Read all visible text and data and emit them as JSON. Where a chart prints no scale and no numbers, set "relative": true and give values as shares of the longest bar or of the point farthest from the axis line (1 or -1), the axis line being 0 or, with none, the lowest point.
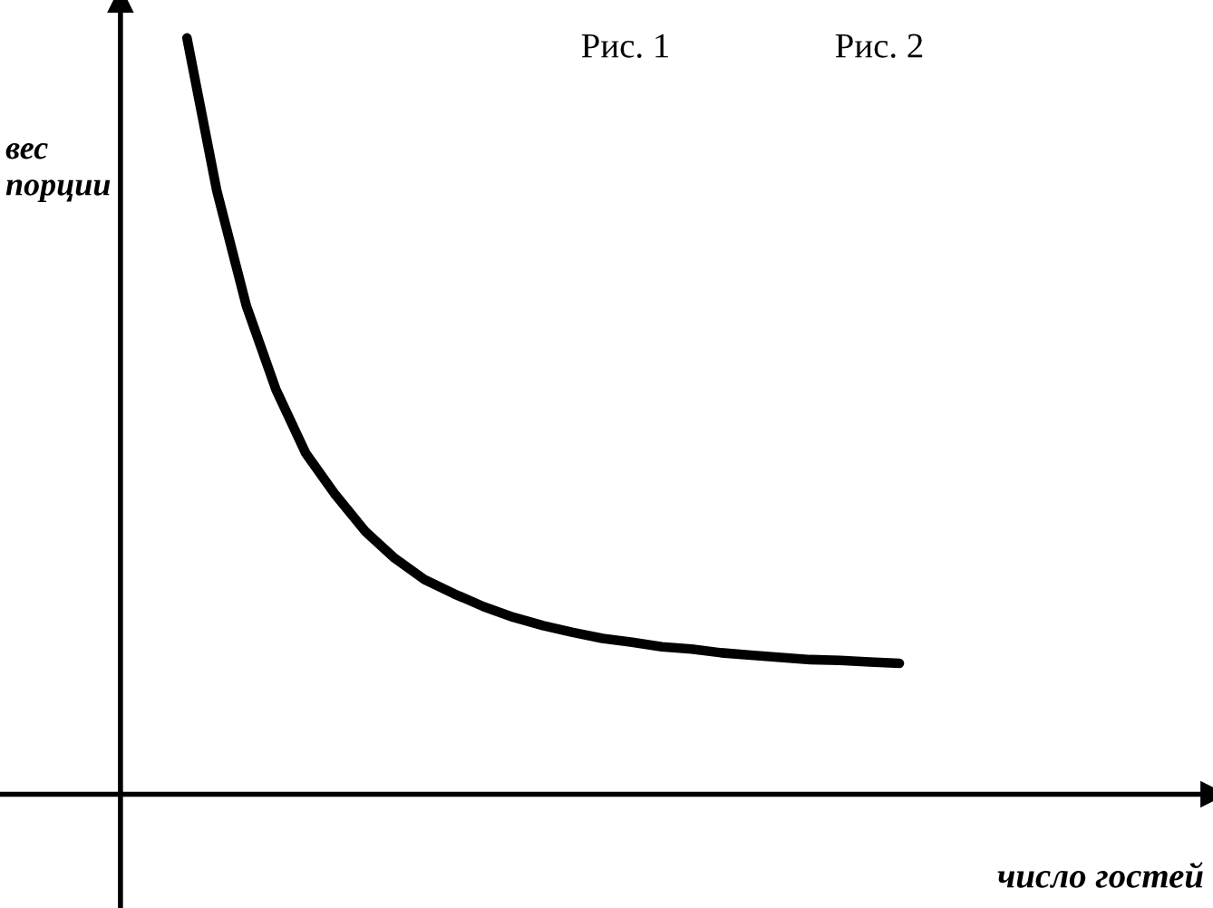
{
  "chart_data": {
    "type": "line",
    "relative": true,
    "xlabel": "число гостей",
    "ylabel": "вес\nпорции",
    "annotations": [
      "Рис. 1",
      "Рис. 2"
    ],
    "categories": [
      null,
      null,
      null,
      null,
      null,
      null,
      null,
      null,
      null,
      null,
      null,
      null,
      null,
      null,
      null,
      null,
      null,
      null,
      null,
      null,
      null,
      null,
      null,
      null,
      null
    ],
    "series": [
      {
        "color": "#000000",
        "values": [
          1.0,
          0.799,
          0.646,
          0.535,
          0.451,
          0.396,
          0.348,
          0.312,
          0.284,
          0.265,
          0.248,
          0.234,
          0.223,
          0.214,
          0.206,
          0.201,
          0.195,
          0.192,
          0.187,
          0.184,
          0.181,
          0.178,
          0.177,
          0.175,
          0.173
        ]
      }
    ],
    "marker": "none",
    "line_style": "solid"
  }
}
